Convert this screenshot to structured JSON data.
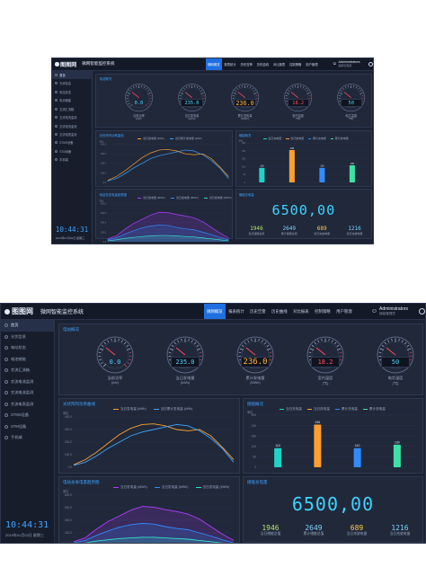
{
  "app": {
    "logo_text": "图图网",
    "system_title": "微网智能监控系统"
  },
  "nav": {
    "tabs": [
      "微网概览",
      "报表统计",
      "历史告警",
      "历史曲线",
      "对比报表",
      "控制策略",
      "用户管理"
    ],
    "active_index": 0
  },
  "user": {
    "name": "Administrators",
    "role": "超级管理员"
  },
  "sidebar": {
    "items": [
      "首页",
      "光伏信息",
      "电站状态",
      "电池储能",
      "交流汇流箱",
      "交流电流监测",
      "交流电流监测",
      "交流电表监测",
      "STMS设备",
      "STM设备",
      "手机端"
    ],
    "active_index": 0
  },
  "clock": {
    "time": "10:44:31",
    "date": "2019年01月02日  星期三"
  },
  "overview": {
    "title": "电站概况",
    "gauges": [
      {
        "value": "0.0",
        "label": "当前功率",
        "unit": "(kW)",
        "color": "#4fd2ff"
      },
      {
        "value": "235.0",
        "label": "当日发电量",
        "unit": "(kWh)",
        "color": "#4fd2ff"
      },
      {
        "value": "236.0",
        "label": "累计发电量",
        "unit": "(MWh)",
        "color": "#ffb13d"
      },
      {
        "value": "18.2",
        "label": "室内温度",
        "unit": "(℃)",
        "color": "#ff4d5e"
      },
      {
        "value": "50",
        "label": "电芯温度",
        "unit": "(℃)",
        "color": "#4fd2ff"
      }
    ]
  },
  "solar_chart": {
    "title": "光伏阵列功率曲线",
    "chart_data": {
      "type": "line",
      "title": "光伏阵列功率曲线",
      "ylabel": "单位",
      "ylim": [
        0,
        400
      ],
      "series": [
        {
          "name": "当日发电量 (kWh)",
          "color": "#ff9f2e",
          "values": [
            20,
            60,
            120,
            190,
            260,
            310,
            340,
            345,
            330,
            300,
            290,
            300,
            250,
            160,
            60
          ]
        },
        {
          "name": "当日累计发电量 (kWh)",
          "color": "#3fa3ff",
          "values": [
            15,
            40,
            90,
            150,
            200,
            250,
            280,
            300,
            320,
            340,
            330,
            290,
            230,
            150,
            40
          ]
        }
      ]
    }
  },
  "meter_chart": {
    "title": "电站总发电量趋势图",
    "chart_data": {
      "type": "area",
      "title": "电站总发电量趋势图",
      "ylabel": "单位",
      "ylim": [
        0,
        800
      ],
      "series": [
        {
          "name": "当日发电量 (MWh)",
          "color": "#b03cff",
          "values": [
            60,
            120,
            260,
            380,
            470,
            560,
            620,
            610,
            570,
            540,
            500,
            420,
            300,
            180,
            80
          ]
        },
        {
          "name": "当日发电量 (MWh)",
          "color": "#2f8cff",
          "values": [
            40,
            80,
            160,
            230,
            290,
            330,
            350,
            340,
            300,
            270,
            250,
            200,
            150,
            90,
            40
          ]
        },
        {
          "name": "当日发电量 (MWh)",
          "color": "#36e0c8",
          "values": [
            20,
            40,
            70,
            90,
            110,
            120,
            130,
            130,
            120,
            110,
            100,
            80,
            60,
            40,
            20
          ]
        }
      ]
    }
  },
  "bar_chart": {
    "title": "储能概况",
    "chart_data": {
      "type": "bar",
      "title": "储能概况",
      "ylabel": "单位",
      "ylim": [
        0,
        300
      ],
      "legend": [
        "当日充电量",
        "当日放电量",
        "累计充电量",
        "累计放电量"
      ],
      "categories": [
        "当日充电量",
        "当日放电量",
        "累计充电量",
        "累计放电量"
      ],
      "values": [
        110,
        246,
        110,
        130
      ],
      "colors": [
        "#1fd3c6",
        "#ff9f2e",
        "#2f8cff",
        "#3fe0a6"
      ]
    }
  },
  "storage": {
    "title": "储能总电量",
    "big_value": "6500,00",
    "stats": [
      {
        "value": "1946",
        "label": "当日储能总值",
        "color": "#b6e26a"
      },
      {
        "value": "2649",
        "label": "累计储能总值",
        "color": "#7fd4ff"
      },
      {
        "value": "689",
        "label": "当日充放电量",
        "color": "#ffcf4d"
      },
      {
        "value": "1216",
        "label": "当日充放电量",
        "color": "#7fd4ff"
      }
    ]
  }
}
